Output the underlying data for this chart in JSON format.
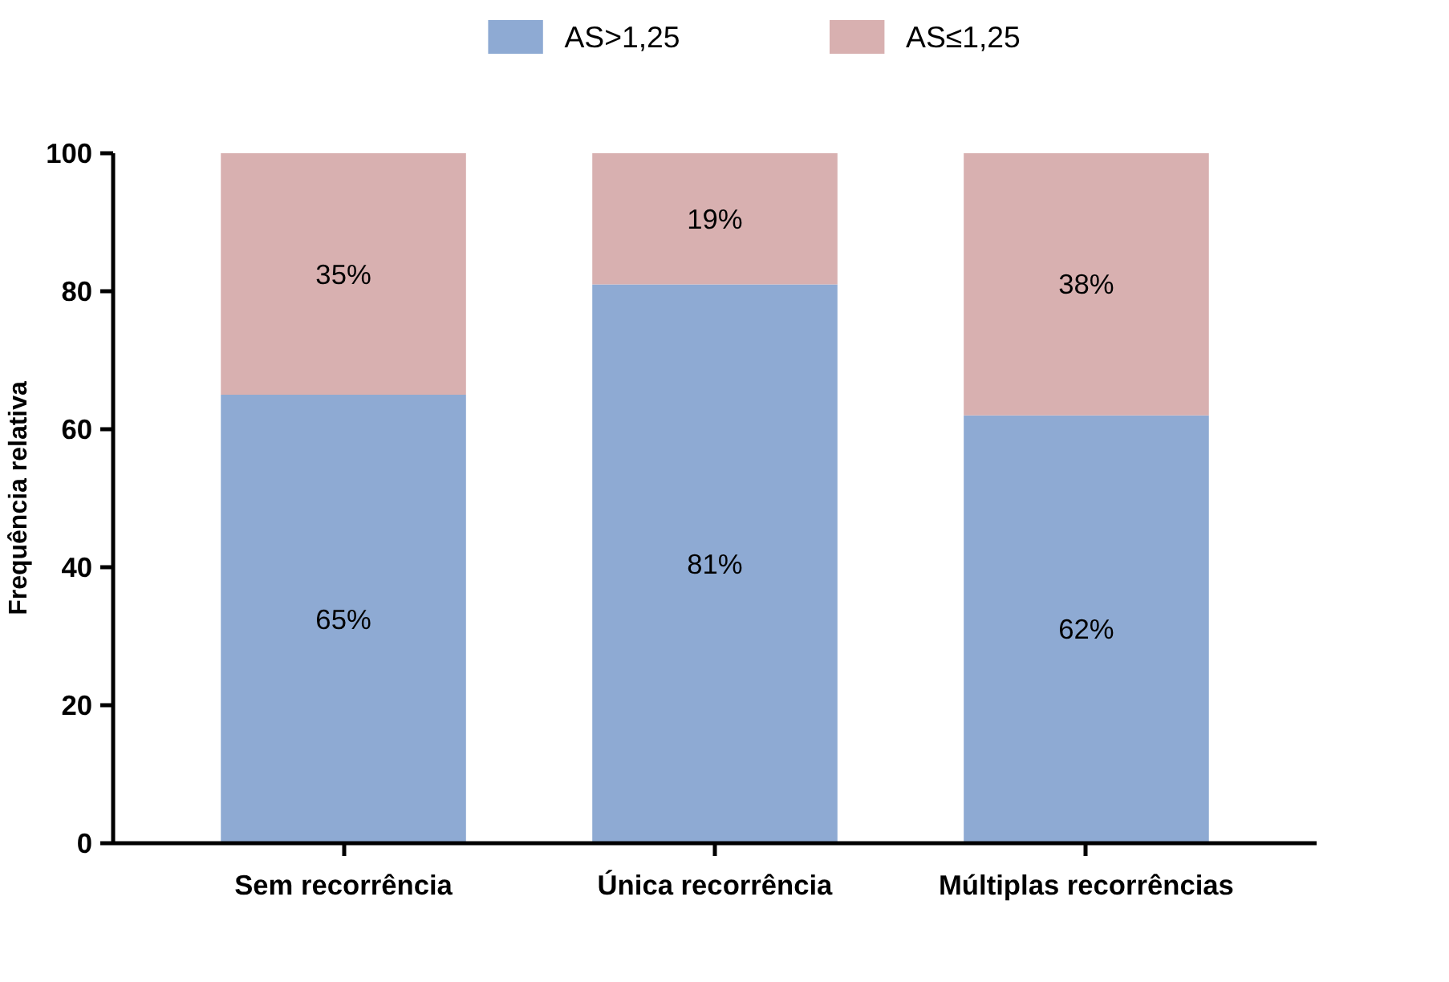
{
  "chart_data": {
    "type": "bar",
    "stacked": true,
    "ylabel": "Frequência relativa",
    "categories": [
      "Sem recorrência",
      "Única recorrência",
      "Múltiplas recorrências"
    ],
    "series": [
      {
        "name": "AS>1,25",
        "color": "#8eaad3",
        "values": [
          65,
          81,
          62
        ],
        "value_labels": [
          "65%",
          "81%",
          "62%"
        ]
      },
      {
        "name": "AS≤1,25",
        "color": "#d8b0b0",
        "values": [
          35,
          19,
          38
        ],
        "value_labels": [
          "35%",
          "19%",
          "38%"
        ]
      }
    ],
    "ylim": [
      0,
      100
    ],
    "yticks": [
      0,
      20,
      40,
      60,
      80,
      100
    ],
    "grid": false,
    "legend": "top"
  }
}
